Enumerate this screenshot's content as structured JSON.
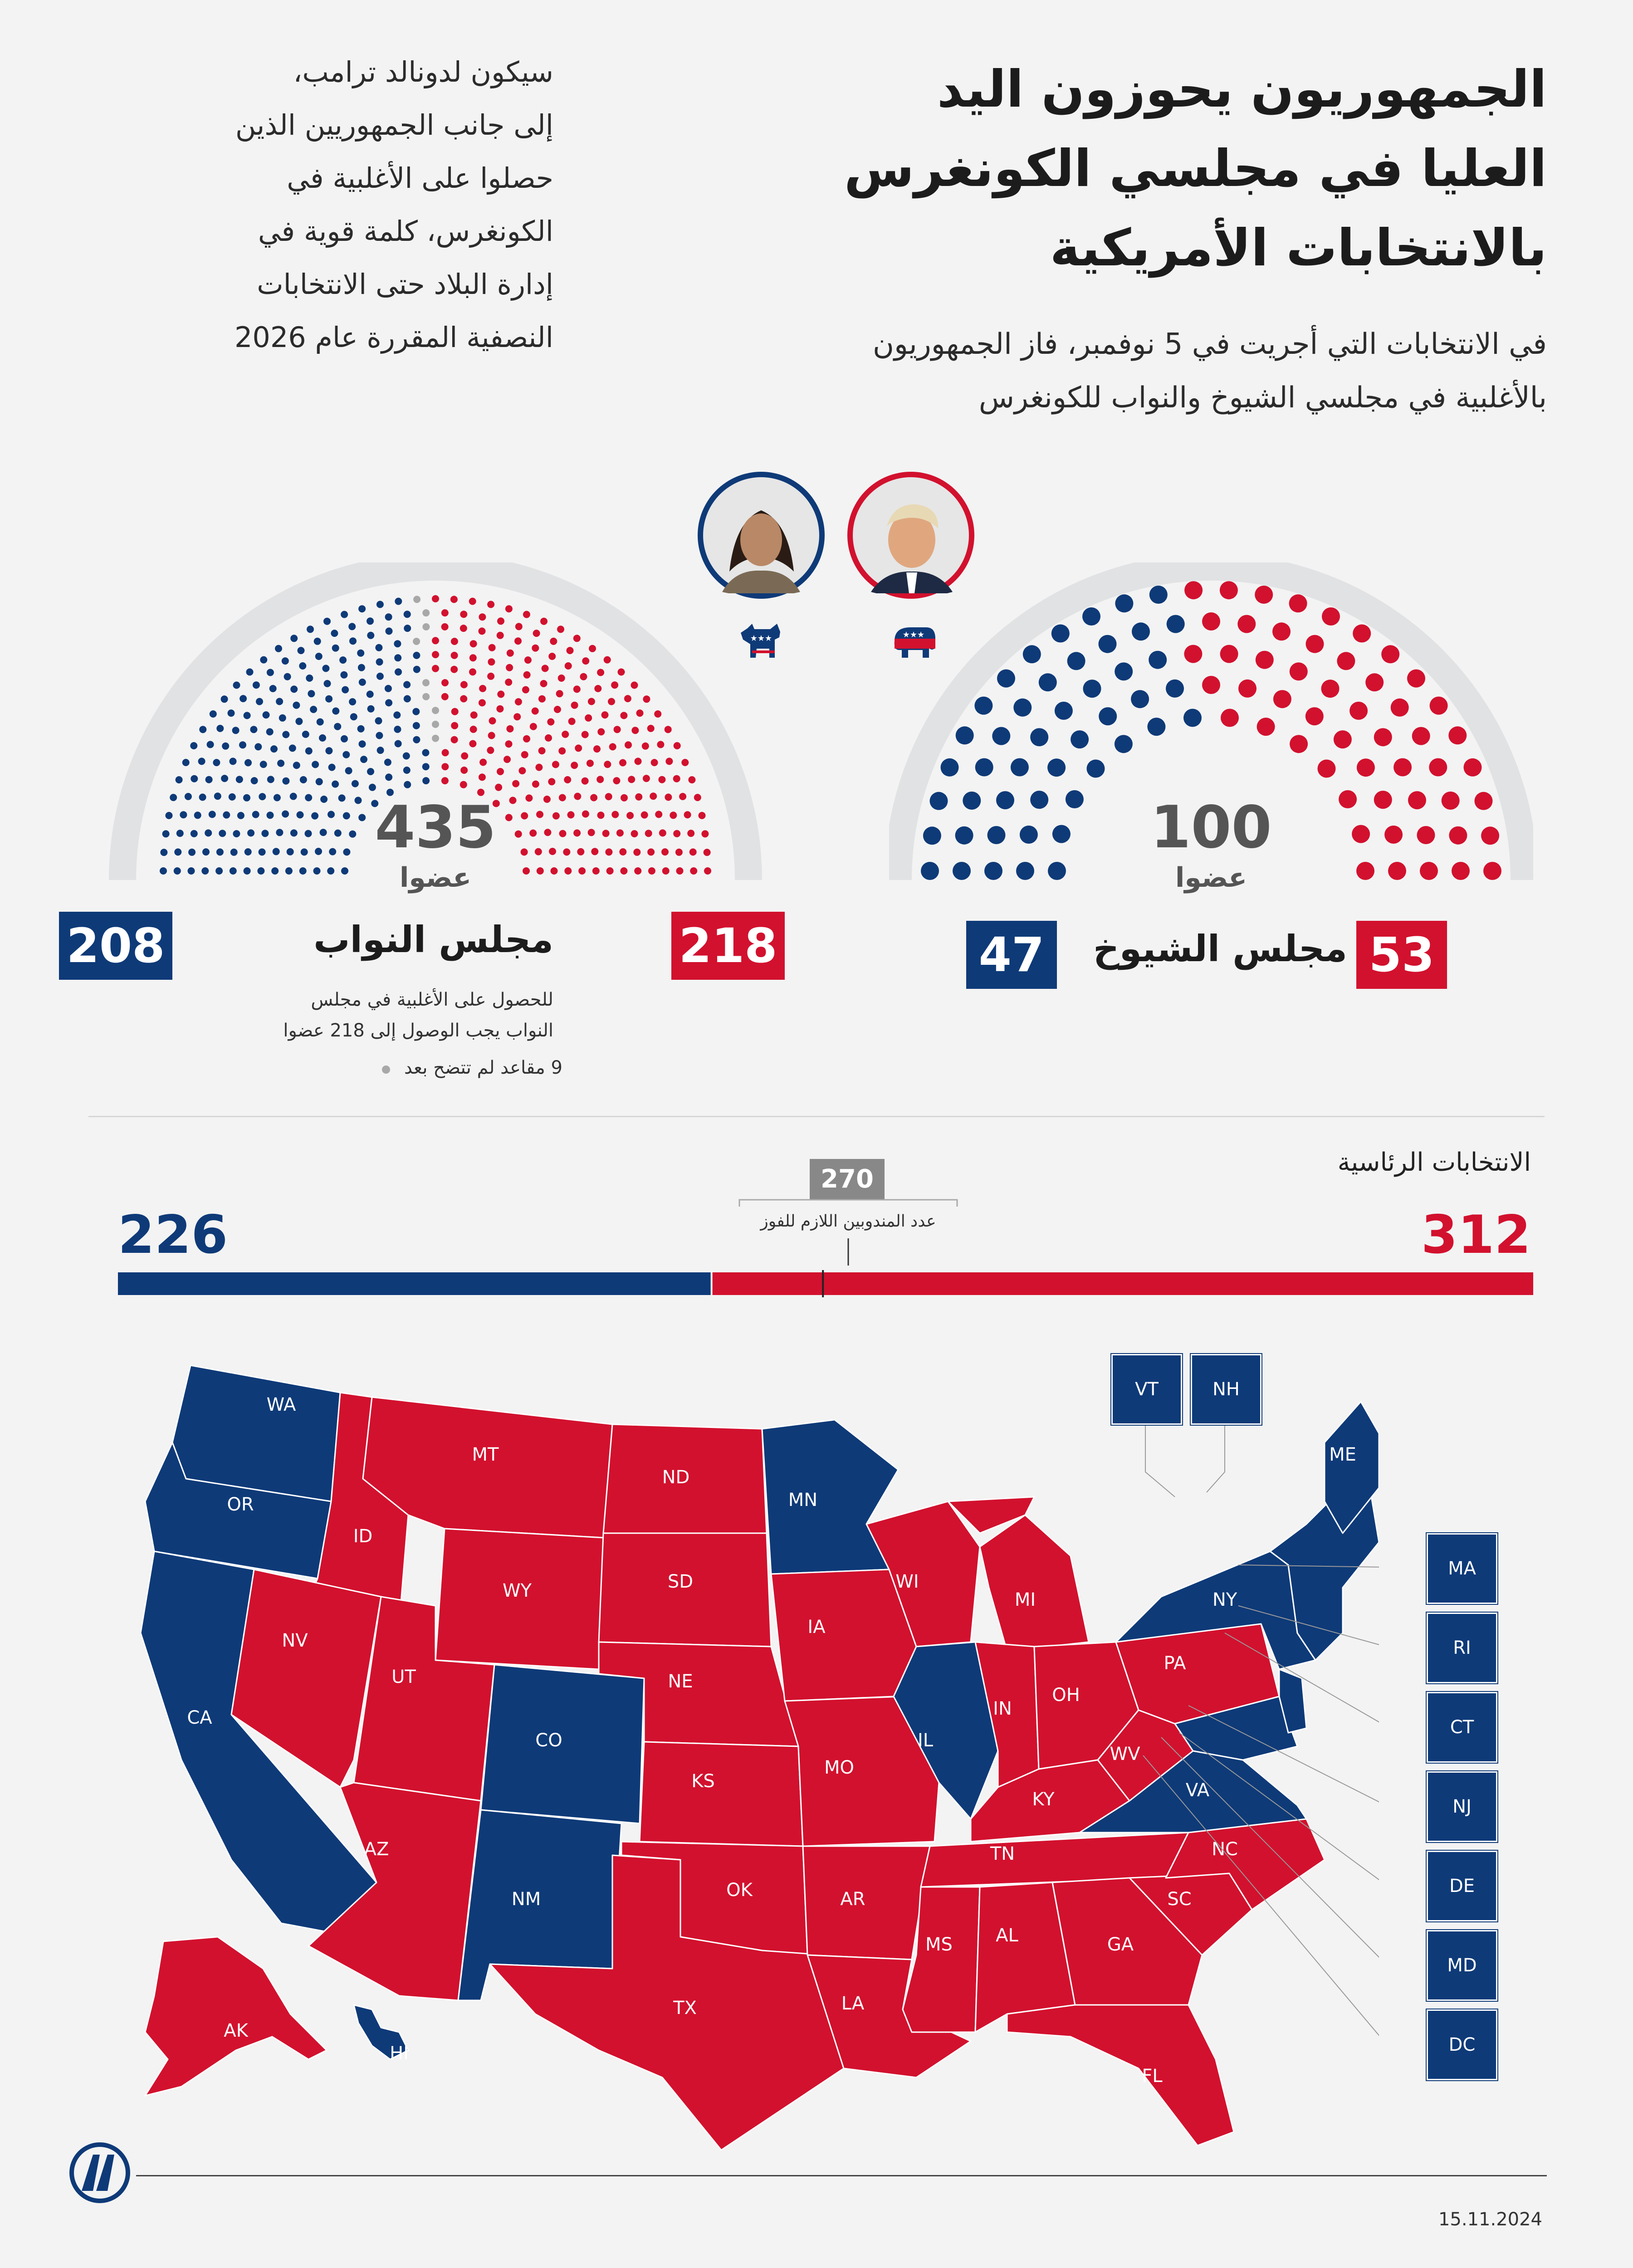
{
  "header": {
    "title_lines": [
      "الجمهوريون يحوزون اليد",
      "العليا في مجلسي الكونغرس",
      "بالانتخابات الأمريكية"
    ],
    "subtitle_lines": [
      "في الانتخابات التي أجريت في 5 نوفمبر، فاز الجمهوريون",
      "بالأغلبية في مجلسي الشيوخ والنواب للكونغرس"
    ],
    "side_lines": [
      "سيكون لدونالد ترامب،",
      "إلى جانب الجمهوريين الذين",
      "حصلوا على الأغلبية في",
      "الكونغرس، كلمة قوية في",
      "إدارة البلاد حتى الانتخابات",
      "النصفية المقررة عام 2026"
    ]
  },
  "colors": {
    "republican": "#d2112e",
    "democrat": "#0e3a78",
    "undecided": "#a8a8a8",
    "arc": "#e1e2e4",
    "background": "#f3f3f3"
  },
  "senate": {
    "name": "مجلس الشيوخ",
    "total": "100",
    "unit": "عضوا",
    "republican_seats": 53,
    "democrat_seats": 47,
    "republican_label": "53",
    "democrat_label": "47"
  },
  "house": {
    "name": "مجلس النواب",
    "total": "435",
    "unit": "عضوا",
    "republican_seats": 218,
    "democrat_seats": 208,
    "undecided_seats": 9,
    "republican_label": "218",
    "democrat_label": "208",
    "note_lines": [
      "للحصول على الأغلبية في مجلس",
      "النواب يجب الوصول إلى 218 عضوا"
    ],
    "undecided_note": "9 مقاعد لم تتضح بعد"
  },
  "candidates": [
    {
      "party": "republican",
      "portrait_icon": "trump-portrait",
      "logo_icon": "elephant-icon"
    },
    {
      "party": "democrat",
      "portrait_icon": "harris-portrait",
      "logo_icon": "donkey-icon"
    }
  ],
  "presidential": {
    "heading": "الانتخابات الرئاسية",
    "republican_votes": 312,
    "democrat_votes": 226,
    "threshold": 270,
    "threshold_label": "عدد المندوبين اللازم للفوز",
    "republican_label": "312",
    "democrat_label": "226",
    "threshold_text": "270"
  },
  "map": {
    "state_labels": [
      {
        "code": "WA",
        "party": "D"
      },
      {
        "code": "OR",
        "party": "D"
      },
      {
        "code": "CA",
        "party": "D"
      },
      {
        "code": "ID",
        "party": "R"
      },
      {
        "code": "NV",
        "party": "R"
      },
      {
        "code": "MT",
        "party": "R"
      },
      {
        "code": "WY",
        "party": "R"
      },
      {
        "code": "UT",
        "party": "R"
      },
      {
        "code": "AZ",
        "party": "R"
      },
      {
        "code": "CO",
        "party": "D"
      },
      {
        "code": "NM",
        "party": "D"
      },
      {
        "code": "ND",
        "party": "R"
      },
      {
        "code": "SD",
        "party": "R"
      },
      {
        "code": "NE",
        "party": "R"
      },
      {
        "code": "KS",
        "party": "R"
      },
      {
        "code": "OK",
        "party": "R"
      },
      {
        "code": "TX",
        "party": "R"
      },
      {
        "code": "MN",
        "party": "D"
      },
      {
        "code": "IA",
        "party": "R"
      },
      {
        "code": "MO",
        "party": "R"
      },
      {
        "code": "AR",
        "party": "R"
      },
      {
        "code": "LA",
        "party": "R"
      },
      {
        "code": "WI",
        "party": "R"
      },
      {
        "code": "IL",
        "party": "D"
      },
      {
        "code": "MI",
        "party": "R"
      },
      {
        "code": "IN",
        "party": "R"
      },
      {
        "code": "OH",
        "party": "R"
      },
      {
        "code": "KY",
        "party": "R"
      },
      {
        "code": "TN",
        "party": "R"
      },
      {
        "code": "MS",
        "party": "R"
      },
      {
        "code": "AL",
        "party": "R"
      },
      {
        "code": "GA",
        "party": "R"
      },
      {
        "code": "FL",
        "party": "R"
      },
      {
        "code": "SC",
        "party": "R"
      },
      {
        "code": "NC",
        "party": "R"
      },
      {
        "code": "VA",
        "party": "D"
      },
      {
        "code": "WV",
        "party": "R"
      },
      {
        "code": "PA",
        "party": "R"
      },
      {
        "code": "NY",
        "party": "D"
      },
      {
        "code": "ME",
        "party": "D"
      },
      {
        "code": "AK",
        "party": "R"
      },
      {
        "code": "HI",
        "party": "D"
      }
    ],
    "small_states": [
      "VT",
      "NH",
      "MA",
      "RI",
      "CT",
      "NJ",
      "DE",
      "MD",
      "DC"
    ]
  },
  "footer": {
    "date": "15.11.2024",
    "logo_icon": "aa-logo-icon"
  }
}
